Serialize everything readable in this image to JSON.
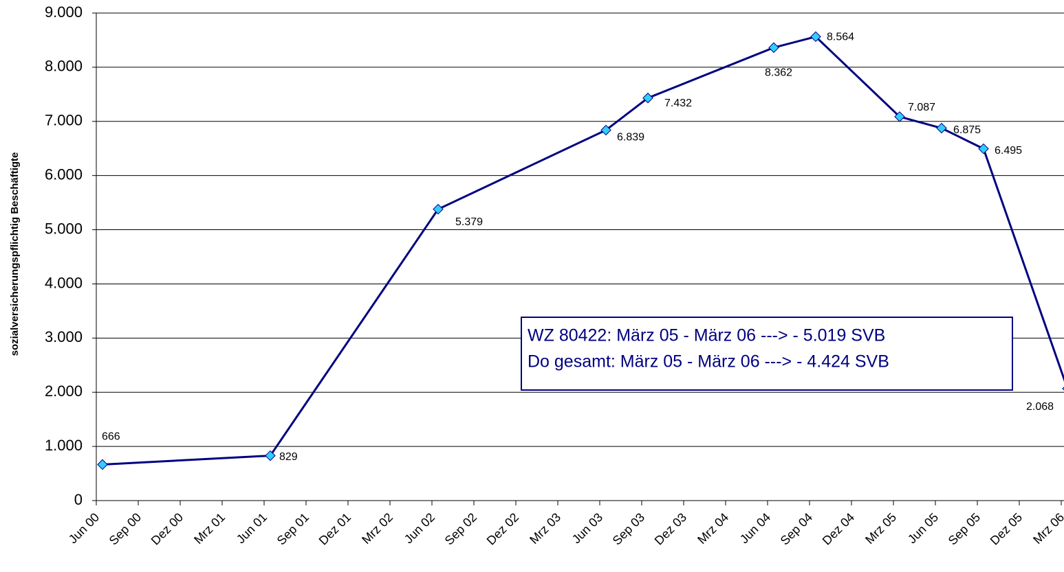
{
  "chart_data": {
    "type": "line",
    "y_label": "sozialversicherungspflichtig Beschäftigte",
    "xticks": [
      "Jun 00",
      "Sep 00",
      "Dez 00",
      "Mrz 01",
      "Jun 01",
      "Sep 01",
      "Dez 01",
      "Mrz 02",
      "Jun 02",
      "Sep 02",
      "Dez 02",
      "Mrz 03",
      "Jun 03",
      "Sep 03",
      "Dez 03",
      "Mrz 04",
      "Jun 04",
      "Sep 04",
      "Dez 04",
      "Mrz 05",
      "Jun 05",
      "Sep 05",
      "Dez 05",
      "Mrz 06"
    ],
    "categories": [
      "Jun 00",
      "Jun 01",
      "Jun 02",
      "Jun 03",
      "Sep 03",
      "Jun 04",
      "Sep 04",
      "Mrz 05",
      "Jun 05",
      "Sep 05",
      "Mrz 06"
    ],
    "series": [
      {
        "color": "#000080",
        "marker_color": "#33ccff",
        "values": [
          666,
          829,
          5379,
          6839,
          7432,
          8362,
          8564,
          7087,
          6875,
          6495,
          2068
        ],
        "value_labels": [
          "666",
          "829",
          "5.379",
          "6.839",
          "7.432",
          "8.362",
          "8.564",
          "7.087",
          "6.875",
          "6.495",
          "2.068"
        ]
      }
    ],
    "ylim": [
      0,
      9000
    ],
    "yticks": [
      0,
      {
        "value": 1000,
        "label": "1.000"
      },
      {
        "value": 2000,
        "label": "2.000"
      },
      {
        "value": 3000,
        "label": "3.000"
      },
      {
        "value": 4000,
        "label": "4.000"
      },
      {
        "value": 5000,
        "label": "5.000"
      },
      {
        "value": 6000,
        "label": "6.000"
      },
      {
        "value": 7000,
        "label": "7.000"
      },
      {
        "value": 8000,
        "label": "8.000"
      },
      {
        "value": 9000,
        "label": "9.000"
      }
    ],
    "grid": true,
    "annotations": [
      "WZ 80422:  März 05 - März 06 ---> - 5.019 SVB",
      "Do gesamt:  März 05 - März 06 ---> - 4.424 SVB"
    ]
  }
}
